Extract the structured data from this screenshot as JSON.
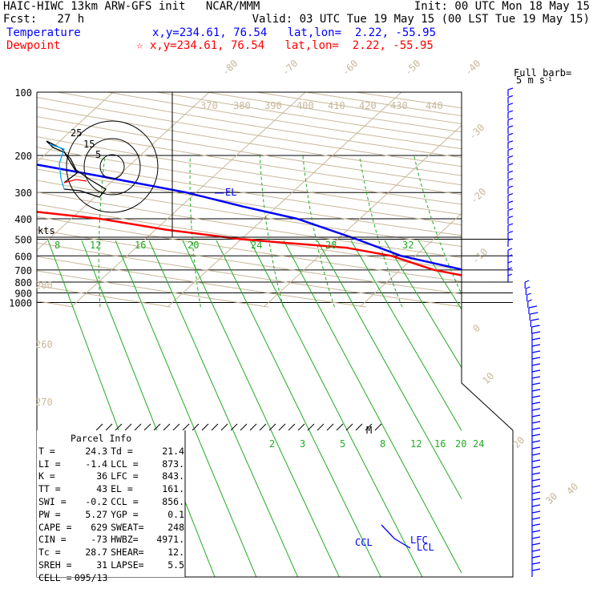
{
  "header": {
    "line1_left": "HAIC-HIWC 13km ARW-GFS init   NCAR/MMM",
    "line1_right": "Init: 00 UTC Mon 18 May 15",
    "line2_left": "Fcst:   27 h",
    "line2_right": "Valid: 03 UTC Tue 19 May 15 (00 LST Tue 19 May 15)",
    "temp_label": "Temperature",
    "temp_pos": "x,y=234.61, 76.54   lat,lon=  2.22, -55.95",
    "dew_label": "Dewpoint",
    "dew_pos": "☆ x,y=234.61, 76.54   lat,lon=  2.22, -55.95",
    "temp_color": "#0000ff",
    "dew_color": "#ff0000"
  },
  "chart_data": {
    "type": "line",
    "pressure_labels": [
      "100",
      "200",
      "300",
      "400",
      "500",
      "600",
      "700",
      "800",
      "900",
      "1000"
    ],
    "isotherm_labels": [
      "-80",
      "-70",
      "-60",
      "-50",
      "-40",
      "-30",
      "-20",
      "-10",
      "0",
      "10",
      "20",
      "30",
      "40"
    ],
    "theta_labels": [
      "370",
      "380",
      "390",
      "400",
      "410",
      "420",
      "430",
      "440",
      "280",
      "260",
      "270"
    ],
    "mixing_ratio_top": [
      "8",
      "12",
      "16",
      "20",
      "24",
      "28",
      "32"
    ],
    "mixing_ratio_low": [
      "2",
      "3",
      "5",
      "8",
      "12",
      "16",
      "20",
      "24"
    ],
    "series": [
      {
        "name": "Temperature",
        "color": "#0000ff",
        "p": [
          1000,
          960,
          925,
          900,
          850,
          800,
          700,
          600,
          500,
          400,
          350,
          300,
          250,
          200,
          170,
          150,
          125,
          110,
          100
        ],
        "t": [
          25.5,
          24.3,
          20.8,
          19,
          16.2,
          12.6,
          6.6,
          -1.5,
          -8,
          -16.5,
          -23.5,
          -31,
          -42,
          -56,
          -63,
          -69,
          -76,
          -80,
          -79
        ]
      },
      {
        "name": "Dewpoint",
        "color": "#ff0000",
        "p": [
          1000,
          960,
          925,
          900,
          850,
          800,
          700,
          600,
          550,
          500,
          450,
          400,
          350,
          300,
          250,
          210,
          200,
          175,
          150,
          130,
          115,
          105,
          100
        ],
        "t": [
          23.5,
          21.4,
          20.6,
          19,
          15.6,
          11.5,
          3.5,
          -2.5,
          -8,
          -20,
          -29,
          -37,
          -50,
          -68,
          -75,
          -87,
          -92,
          -83,
          -90,
          -96,
          -96,
          -95,
          -94
        ]
      }
    ],
    "annotations": [
      "EL",
      "LFC",
      "LCL",
      "CCL",
      "M"
    ],
    "hodograph": {
      "axis_label": "kts",
      "ring_labels": [
        "5",
        "15",
        "25"
      ]
    },
    "wind_barb_label": "Full barb=",
    "wind_barb_units": "5 m s",
    "wind_barb_units_sup": "-1"
  },
  "parcel_info": {
    "title": "Parcel Info",
    "rows": [
      [
        "T  =",
        "24.3",
        "Td =",
        "21.4"
      ],
      [
        "LI =",
        "-1.4",
        "LCL =",
        "873."
      ],
      [
        "K  =",
        "36",
        "LFC =",
        "843."
      ],
      [
        "TT =",
        "43",
        "EL  =",
        "161."
      ],
      [
        "SWI =",
        "-0.2",
        "CCL =",
        "856."
      ],
      [
        "PW =",
        "5.27",
        "YGP =",
        "0.1"
      ],
      [
        "CAPE =",
        "629",
        "SWEAT=",
        "248"
      ],
      [
        "CIN =",
        "-73",
        "HWBZ=",
        "4971."
      ],
      [
        "Tc =",
        "28.7",
        "SHEAR=",
        "12."
      ],
      [
        "SREH =",
        "31",
        "LAPSE=",
        "5.5"
      ],
      [
        "CELL =",
        "095/13",
        "",
        ""
      ]
    ]
  }
}
